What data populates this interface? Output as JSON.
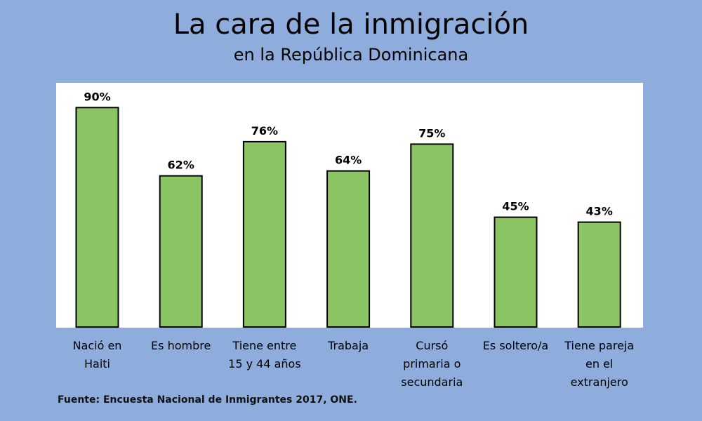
{
  "chart_data": {
    "type": "bar",
    "title": "La cara de la inmigración",
    "subtitle": "en la República Dominicana",
    "categories": [
      [
        "Nació en",
        "Haiti"
      ],
      [
        "Es hombre"
      ],
      [
        "Tiene entre",
        "15 y 44 años"
      ],
      [
        "Trabaja"
      ],
      [
        "Cursó",
        "primaria o",
        "secundaria"
      ],
      [
        "Es soltero/a"
      ],
      [
        "Tiene pareja",
        "en el",
        "extranjero"
      ]
    ],
    "values": [
      90,
      62,
      76,
      64,
      75,
      45,
      43
    ],
    "value_labels": [
      "90%",
      "62%",
      "76%",
      "64%",
      "75%",
      "45%",
      "43%"
    ],
    "ylim": [
      0,
      100
    ],
    "grid": false,
    "bar_color": "#8bc462",
    "bar_stroke": "#000000",
    "plot_background": "#ffffff",
    "page_background": "#8eaddc",
    "source": "Fuente: Encuesta Nacional de Inmigrantes 2017, ONE."
  }
}
